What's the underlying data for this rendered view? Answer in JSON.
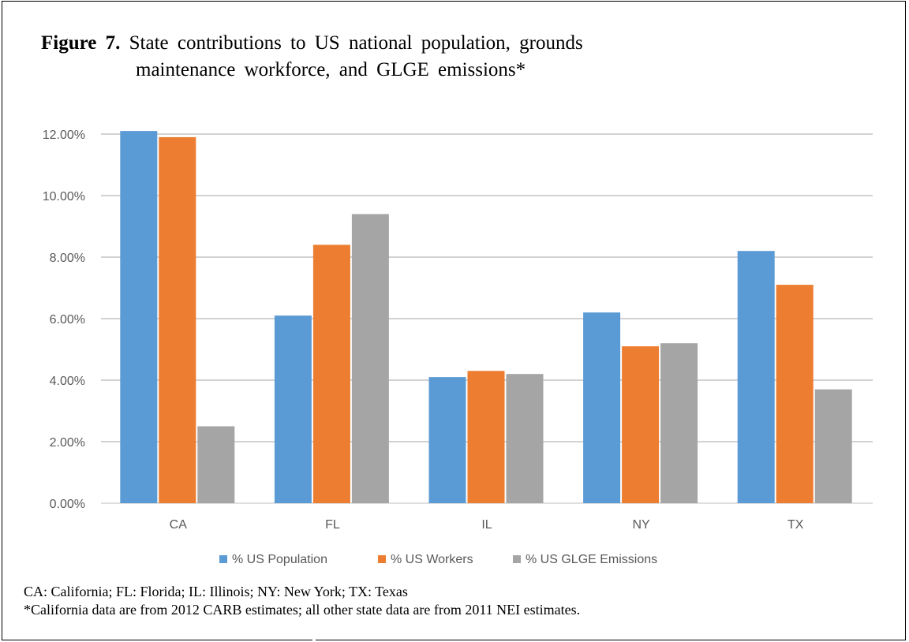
{
  "figure": {
    "label": "Figure 7.",
    "title_line1": "State contributions to US national population, grounds",
    "title_line2": "maintenance workforce, and GLGE emissions*"
  },
  "caption": {
    "line1": "CA: California; FL: Florida; IL: Illinois; NY: New York; TX: Texas",
    "line2": "*California data are from 2012 CARB estimates; all other state data are from 2011 NEI estimates."
  },
  "chart_data": {
    "type": "bar",
    "categories": [
      "CA",
      "FL",
      "IL",
      "NY",
      "TX"
    ],
    "series": [
      {
        "name": "% US Population",
        "color": "#5b9bd5",
        "values": [
          12.1,
          6.1,
          4.1,
          6.2,
          8.2
        ]
      },
      {
        "name": "% US Workers",
        "color": "#ed7d31",
        "values": [
          11.9,
          8.4,
          4.3,
          5.1,
          7.1
        ]
      },
      {
        "name": "% US GLGE Emissions",
        "color": "#a5a5a5",
        "values": [
          2.5,
          9.4,
          4.2,
          5.2,
          3.7
        ]
      }
    ],
    "yticks": [
      "0.00%",
      "2.00%",
      "4.00%",
      "6.00%",
      "8.00%",
      "10.00%",
      "12.00%"
    ],
    "ylim": [
      0,
      12
    ],
    "grid": true,
    "legend_position": "bottom"
  }
}
